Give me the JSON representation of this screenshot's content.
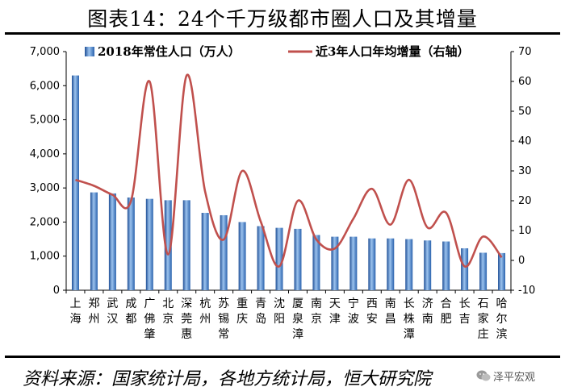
{
  "title": "图表14：24个千万级都市圈人口及其增量",
  "source": "资料来源：国家统计局，各地方统计局，恒大研究院",
  "watermark": "泽平宏观",
  "colors": {
    "bar": "#3f7bc5",
    "bar_dark": "#1f4f96",
    "bar_light": "#9cc3ee",
    "line": "#c0504d"
  },
  "chart_data": {
    "type": "bar",
    "categories": [
      "上海",
      "郑州",
      "武汉",
      "成都",
      "广佛肇",
      "北京",
      "深莞惠",
      "杭州",
      "苏锡常",
      "重庆",
      "青岛",
      "沈阳",
      "厦泉漳",
      "南京",
      "天津",
      "宁波",
      "西安",
      "南昌",
      "长株潭",
      "济南",
      "合肥",
      "长吉",
      "石家庄",
      "哈尔滨"
    ],
    "category_lines": [
      [
        "上",
        "海"
      ],
      [
        "郑",
        "州"
      ],
      [
        "武",
        "汉"
      ],
      [
        "成",
        "都"
      ],
      [
        "广",
        "佛",
        "肇"
      ],
      [
        "北",
        "京"
      ],
      [
        "深",
        "莞",
        "惠"
      ],
      [
        "杭",
        "州"
      ],
      [
        "苏",
        "锡",
        "常"
      ],
      [
        "重",
        "庆"
      ],
      [
        "青",
        "岛"
      ],
      [
        "沈",
        "阳"
      ],
      [
        "厦",
        "泉",
        "漳"
      ],
      [
        "南",
        "京"
      ],
      [
        "天",
        "津"
      ],
      [
        "宁",
        "波"
      ],
      [
        "西",
        "安"
      ],
      [
        "南",
        "昌"
      ],
      [
        "长",
        "株",
        "潭"
      ],
      [
        "济",
        "南"
      ],
      [
        "合",
        "肥"
      ],
      [
        "长",
        "吉"
      ],
      [
        "石",
        "家",
        "庄"
      ],
      [
        "哈",
        "尔",
        "滨"
      ]
    ],
    "series": [
      {
        "name": "2018年常住人口（万人）",
        "type": "bar",
        "axis": "left",
        "values": [
          6300,
          2870,
          2840,
          2720,
          2680,
          2640,
          2640,
          2270,
          2200,
          2000,
          1880,
          1830,
          1800,
          1620,
          1570,
          1570,
          1520,
          1520,
          1500,
          1460,
          1430,
          1230,
          1100,
          1090
        ]
      },
      {
        "name": "近3年人口年均增量（右轴）",
        "type": "line",
        "axis": "right",
        "values": [
          27,
          25,
          22,
          20,
          60,
          2,
          62,
          23,
          7,
          30,
          13,
          -2,
          20,
          7,
          4,
          14,
          24,
          12,
          27,
          11,
          16,
          -2,
          8,
          1
        ]
      }
    ],
    "y_left": {
      "min": 0,
      "max": 7000,
      "ticks": [
        0,
        1000,
        2000,
        3000,
        4000,
        5000,
        6000,
        7000
      ],
      "tick_labels": [
        "0",
        "1,000",
        "2,000",
        "3,000",
        "4,000",
        "5,000",
        "6,000",
        "7,000"
      ]
    },
    "y_right": {
      "min": -10,
      "max": 70,
      "ticks": [
        -10,
        0,
        10,
        20,
        30,
        40,
        50,
        60,
        70
      ],
      "tick_labels": [
        "-10",
        "0",
        "10",
        "20",
        "30",
        "40",
        "50",
        "60",
        "70"
      ]
    },
    "legend": "top",
    "grid": false
  }
}
